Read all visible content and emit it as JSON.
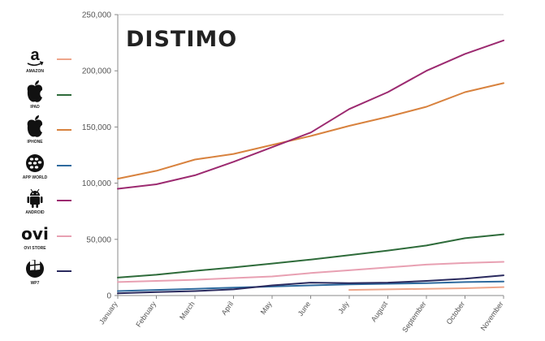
{
  "brand": {
    "name": "DISTIMO"
  },
  "colors": {
    "amazon": "#eea58a",
    "ipad": "#2e6b3a",
    "iphone": "#d8823e",
    "app_world": "#2e6a9e",
    "android": "#9c2a70",
    "ovi_store": "#e8a0b2",
    "wp7": "#2a2a5e",
    "axis": "#888888",
    "gridline": "#cccccc"
  },
  "legend": [
    {
      "key": "amazon",
      "label": "AMAZON",
      "icon": "amazon-icon",
      "color": "#eea58a"
    },
    {
      "key": "ipad",
      "label": "IPAD",
      "icon": "apple-icon",
      "color": "#2e6b3a"
    },
    {
      "key": "iphone",
      "label": "IPHONE",
      "icon": "apple-icon",
      "color": "#d8823e"
    },
    {
      "key": "app_world",
      "label": "APP WORLD",
      "icon": "blackberry-icon",
      "color": "#2e6a9e"
    },
    {
      "key": "android",
      "label": "ANDROID",
      "icon": "android-icon",
      "color": "#9c2a70"
    },
    {
      "key": "ovi_store",
      "label": "OVI STORE",
      "icon": "ovi-icon",
      "color": "#e8a0b2"
    },
    {
      "key": "wp7",
      "label": "WP7",
      "icon": "windows-icon",
      "color": "#2a2a5e"
    }
  ],
  "chart_data": {
    "type": "line",
    "title": "",
    "xlabel": "",
    "ylabel": "",
    "categories": [
      "January",
      "February",
      "March",
      "April",
      "May",
      "June",
      "July",
      "August",
      "September",
      "October",
      "November"
    ],
    "ylim": [
      0,
      250000
    ],
    "yticks": [
      0,
      50000,
      100000,
      150000,
      200000,
      250000
    ],
    "ytick_labels": [
      "0",
      "50,000",
      "100,000",
      "150,000",
      "200,000",
      "250,000"
    ],
    "grid": "horizontal-top-only",
    "legend_placement": "left",
    "series": [
      {
        "name": "AMAZON",
        "color": "#eea58a",
        "values": [
          null,
          null,
          null,
          null,
          null,
          null,
          5000,
          5500,
          6000,
          6500,
          7500
        ]
      },
      {
        "name": "IPAD",
        "color": "#2e6b3a",
        "values": [
          16000,
          18500,
          22000,
          25000,
          28500,
          32000,
          36000,
          40000,
          44500,
          51000,
          54500
        ]
      },
      {
        "name": "IPHONE",
        "color": "#d8823e",
        "values": [
          104000,
          111000,
          121000,
          126000,
          134000,
          142000,
          151000,
          159000,
          168000,
          181000,
          189000
        ]
      },
      {
        "name": "APP WORLD",
        "color": "#2e6a9e",
        "values": [
          4000,
          5000,
          6000,
          7000,
          8000,
          9000,
          10000,
          10500,
          11000,
          12000,
          12500
        ]
      },
      {
        "name": "ANDROID",
        "color": "#9c2a70",
        "values": [
          95000,
          99000,
          107000,
          119000,
          132000,
          145000,
          166000,
          181000,
          200000,
          215000,
          227000
        ]
      },
      {
        "name": "OVI STORE",
        "color": "#e8a0b2",
        "values": [
          12000,
          13000,
          14000,
          15500,
          17000,
          20000,
          22500,
          25000,
          27500,
          29000,
          30000
        ]
      },
      {
        "name": "WP7",
        "color": "#2a2a5e",
        "values": [
          2000,
          3000,
          4000,
          5500,
          9000,
          11500,
          11000,
          11500,
          13000,
          15000,
          18000
        ]
      }
    ]
  }
}
